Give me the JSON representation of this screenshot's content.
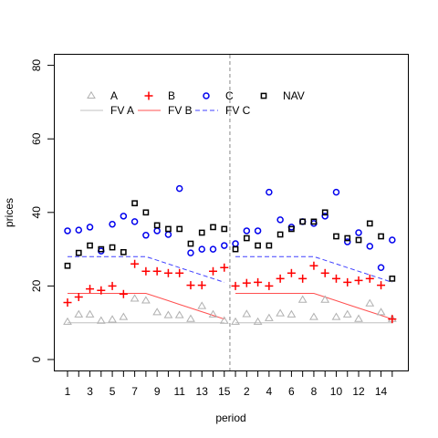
{
  "chart_data": {
    "type": "scatter",
    "title": "",
    "xlabel": "period",
    "ylabel": "prices",
    "ylim": [
      0,
      80
    ],
    "y_ticks": [
      0,
      20,
      40,
      60,
      80
    ],
    "x_tick_labels": [
      "1",
      "3",
      "5",
      "7",
      "9",
      "11",
      "13",
      "15",
      "2",
      "4",
      "6",
      "8",
      "10",
      "12",
      "14"
    ],
    "periods": 30,
    "session_break_after": 15,
    "grid": false,
    "legend_position": "top-left",
    "series": [
      {
        "name": "A",
        "kind": "points",
        "marker": "triangle",
        "color": "#b0b0b0",
        "values": [
          10.2,
          12.2,
          12.2,
          10.5,
          10.8,
          11.5,
          16.5,
          16.0,
          12.8,
          12.0,
          12.0,
          11.0,
          14.5,
          12.2,
          10.5,
          10.2,
          12.3,
          10.2,
          11.2,
          12.5,
          12.2,
          16.2,
          11.5,
          16.2,
          11.5,
          12.2,
          11.0,
          15.2,
          12.8,
          11.0
        ]
      },
      {
        "name": "B",
        "kind": "points",
        "marker": "plus",
        "color": "#ff0000",
        "values": [
          15.5,
          17.0,
          19.2,
          18.8,
          20.0,
          17.8,
          26.0,
          24.0,
          24.0,
          23.5,
          23.5,
          20.2,
          20.2,
          24.0,
          25.0,
          20.0,
          20.8,
          21.0,
          20.0,
          22.0,
          23.5,
          22.0,
          25.5,
          23.5,
          22.0,
          21.0,
          21.5,
          22.0,
          20.2,
          11.0
        ]
      },
      {
        "name": "C",
        "kind": "points",
        "marker": "circle",
        "color": "#0000ee",
        "values": [
          35.0,
          35.2,
          36.0,
          29.5,
          36.8,
          39.0,
          37.5,
          33.8,
          35.0,
          34.0,
          46.5,
          29.0,
          30.0,
          30.0,
          31.0,
          31.5,
          35.0,
          35.0,
          45.5,
          38.0,
          36.0,
          37.5,
          37.0,
          39.0,
          45.5,
          32.0,
          34.5,
          30.8,
          25.0,
          32.5
        ]
      },
      {
        "name": "NAV",
        "kind": "points",
        "marker": "square",
        "color": "#000000",
        "values": [
          25.5,
          29.0,
          31.0,
          30.0,
          30.5,
          29.2,
          42.5,
          40.0,
          36.5,
          35.5,
          35.5,
          31.5,
          34.5,
          36.0,
          35.5,
          30.0,
          33.0,
          31.0,
          31.0,
          34.0,
          35.5,
          37.5,
          37.5,
          40.0,
          33.5,
          33.0,
          32.5,
          37.0,
          33.5,
          22.0
        ]
      },
      {
        "name": "FV A",
        "kind": "line",
        "dash": "solid",
        "color": "#c0c0c0",
        "values": [
          10,
          10,
          10,
          10,
          10,
          10,
          10,
          10,
          10,
          10,
          10,
          10,
          10,
          10,
          10,
          10,
          10,
          10,
          10,
          10,
          10,
          10,
          10,
          10,
          10,
          10,
          10,
          10,
          10,
          10
        ]
      },
      {
        "name": "FV B",
        "kind": "line",
        "dash": "solid",
        "color": "#ff5050",
        "values": [
          18,
          18,
          18,
          18,
          18,
          18,
          18,
          18,
          17,
          16,
          15,
          14,
          13,
          12,
          11,
          18,
          18,
          18,
          18,
          18,
          18,
          18,
          18,
          17,
          16,
          15,
          14,
          13,
          12,
          11
        ]
      },
      {
        "name": "FV C",
        "kind": "line",
        "dash": "dashed",
        "color": "#4040ff",
        "values": [
          28,
          28,
          28,
          28,
          28,
          28,
          28,
          28,
          27,
          26,
          25,
          24,
          23,
          22,
          21,
          28,
          28,
          28,
          28,
          28,
          28,
          28,
          28,
          27,
          26,
          25,
          24,
          23,
          22,
          21
        ]
      }
    ]
  }
}
